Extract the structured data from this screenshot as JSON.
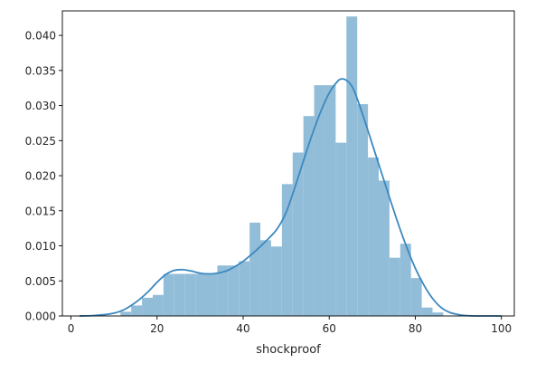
{
  "chart_data": {
    "type": "bar",
    "xlabel": "shockproof",
    "ylabel": "",
    "xlim": [
      -2,
      103
    ],
    "ylim": [
      0,
      0.0435
    ],
    "grid": false,
    "xticks": [
      0,
      20,
      40,
      60,
      80,
      100
    ],
    "yticks": [
      0.0,
      0.005,
      0.01,
      0.015,
      0.02,
      0.025,
      0.03,
      0.035,
      0.04
    ],
    "ytick_labels": [
      "0.000",
      "0.005",
      "0.010",
      "0.015",
      "0.020",
      "0.025",
      "0.030",
      "0.035",
      "0.040"
    ],
    "colors": {
      "bars": "#92bdd8",
      "kde": "#3c88bf",
      "axes": "#000000"
    },
    "histogram": {
      "bins": [
        {
          "x0": 11.5,
          "x1": 14.0,
          "value": 0.0006
        },
        {
          "x0": 14.0,
          "x1": 16.5,
          "value": 0.0015
        },
        {
          "x0": 16.5,
          "x1": 19.0,
          "value": 0.0026
        },
        {
          "x0": 19.0,
          "x1": 21.5,
          "value": 0.003
        },
        {
          "x0": 21.5,
          "x1": 24.0,
          "value": 0.006
        },
        {
          "x0": 24.0,
          "x1": 26.5,
          "value": 0.006
        },
        {
          "x0": 26.5,
          "x1": 29.0,
          "value": 0.006
        },
        {
          "x0": 29.0,
          "x1": 31.5,
          "value": 0.006
        },
        {
          "x0": 31.5,
          "x1": 34.0,
          "value": 0.006
        },
        {
          "x0": 34.0,
          "x1": 36.5,
          "value": 0.0072
        },
        {
          "x0": 36.5,
          "x1": 39.0,
          "value": 0.0072
        },
        {
          "x0": 39.0,
          "x1": 41.5,
          "value": 0.0078
        },
        {
          "x0": 41.5,
          "x1": 44.0,
          "value": 0.0133
        },
        {
          "x0": 44.0,
          "x1": 46.5,
          "value": 0.0108
        },
        {
          "x0": 46.5,
          "x1": 49.0,
          "value": 0.0099
        },
        {
          "x0": 49.0,
          "x1": 51.5,
          "value": 0.0188
        },
        {
          "x0": 51.5,
          "x1": 54.0,
          "value": 0.0233
        },
        {
          "x0": 54.0,
          "x1": 56.5,
          "value": 0.0285
        },
        {
          "x0": 56.5,
          "x1": 59.0,
          "value": 0.0329
        },
        {
          "x0": 59.0,
          "x1": 61.5,
          "value": 0.0329
        },
        {
          "x0": 61.5,
          "x1": 64.0,
          "value": 0.0247
        },
        {
          "x0": 64.0,
          "x1": 66.5,
          "value": 0.0427
        },
        {
          "x0": 66.5,
          "x1": 69.0,
          "value": 0.0302
        },
        {
          "x0": 69.0,
          "x1": 71.5,
          "value": 0.0226
        },
        {
          "x0": 71.5,
          "x1": 74.0,
          "value": 0.0193
        },
        {
          "x0": 74.0,
          "x1": 76.5,
          "value": 0.0083
        },
        {
          "x0": 76.5,
          "x1": 79.0,
          "value": 0.0103
        },
        {
          "x0": 79.0,
          "x1": 81.5,
          "value": 0.0054
        },
        {
          "x0": 81.5,
          "x1": 84.0,
          "value": 0.0012
        },
        {
          "x0": 84.0,
          "x1": 86.5,
          "value": 0.0005
        }
      ]
    },
    "kde": {
      "x": [
        2,
        5,
        8,
        10,
        12,
        14,
        16,
        18,
        20,
        22,
        24,
        26,
        28,
        30,
        32,
        34,
        36,
        38,
        40,
        42,
        44,
        46,
        48,
        50,
        52,
        54,
        56,
        58,
        60,
        62,
        63,
        64,
        65,
        66,
        68,
        70,
        72,
        74,
        76,
        78,
        80,
        82,
        84,
        86,
        88,
        90,
        92,
        95,
        100
      ],
      "y": [
        0.0,
        5e-05,
        0.0002,
        0.0004,
        0.0008,
        0.0015,
        0.0024,
        0.0035,
        0.0048,
        0.0059,
        0.0065,
        0.0066,
        0.0064,
        0.0061,
        0.006,
        0.0061,
        0.0064,
        0.007,
        0.0078,
        0.0088,
        0.0099,
        0.0111,
        0.0125,
        0.0148,
        0.0183,
        0.0221,
        0.0258,
        0.0291,
        0.0318,
        0.0335,
        0.0338,
        0.0336,
        0.033,
        0.0318,
        0.0283,
        0.0245,
        0.0207,
        0.0169,
        0.0132,
        0.0098,
        0.0068,
        0.0044,
        0.0025,
        0.0012,
        0.0005,
        0.0002,
        5e-05,
        0.0,
        0.0
      ]
    }
  }
}
